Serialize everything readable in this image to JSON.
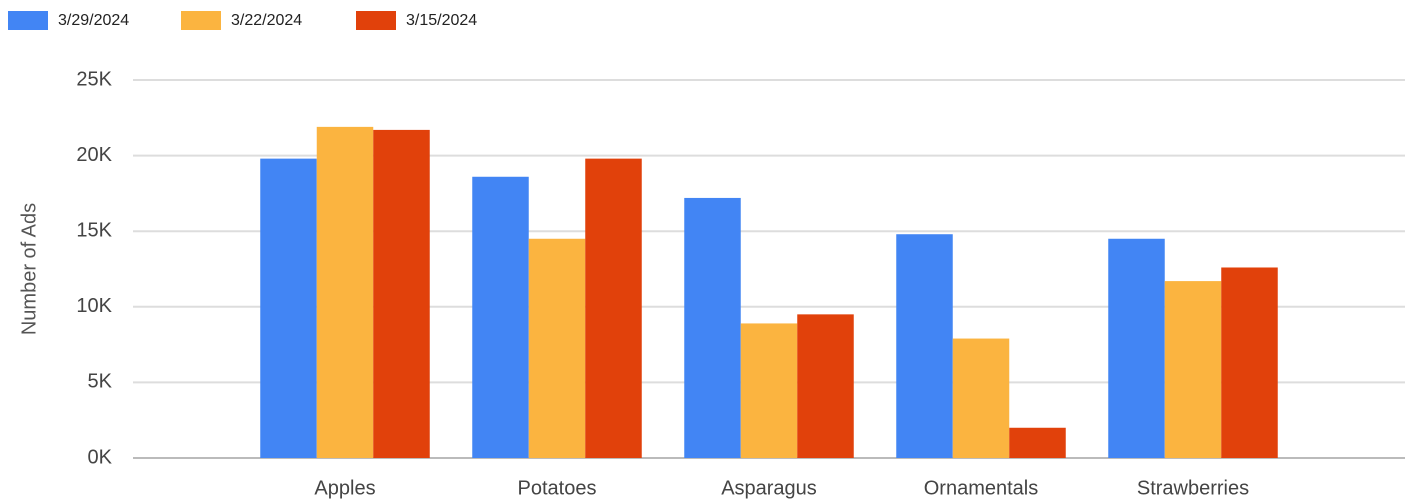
{
  "chart_data": {
    "type": "bar",
    "y_label": "Number of Ads",
    "categories": [
      "Apples",
      "Potatoes",
      "Asparagus",
      "Ornamentals",
      "Strawberries"
    ],
    "series": [
      {
        "name": "3/29/2024",
        "color": "#4285f4",
        "values": [
          19800,
          18600,
          17200,
          14800,
          14500
        ]
      },
      {
        "name": "3/22/2024",
        "color": "#fbb440",
        "values": [
          21900,
          14500,
          8900,
          7900,
          11700
        ]
      },
      {
        "name": "3/15/2024",
        "color": "#e1410b",
        "values": [
          21700,
          19800,
          9500,
          2000,
          12600
        ]
      }
    ],
    "ylim": [
      0,
      25000
    ],
    "yticks": [
      {
        "value": 0,
        "label": "0K"
      },
      {
        "value": 5000,
        "label": "5K"
      },
      {
        "value": 10000,
        "label": "10K"
      },
      {
        "value": 15000,
        "label": "15K"
      },
      {
        "value": 20000,
        "label": "20K"
      },
      {
        "value": 25000,
        "label": "25K"
      }
    ],
    "grid": true,
    "legend": "top-left"
  }
}
